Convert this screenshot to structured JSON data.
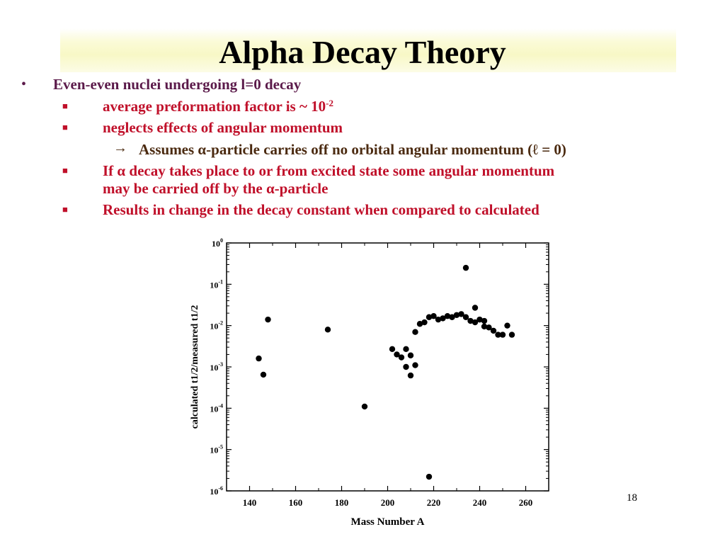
{
  "slide": {
    "title": "Alpha Decay Theory",
    "page_number": "18",
    "bullets": {
      "b1": "Even-even nuclei undergoing l=0 decay",
      "b2_text": "average preformation factor is ~ 10",
      "b2_sup": "-2",
      "b3": "neglects effects of angular momentum",
      "b4": "Assumes α-particle carries off no orbital angular momentum (ℓ = 0)",
      "b5_line1": "If α decay takes place to or from excited state some angular momentum",
      "b5_line2": "may be carried off by the α-particle",
      "b6": "Results in change in the decay constant when compared to calculated"
    }
  },
  "chart_data": {
    "type": "scatter",
    "xlabel": "Mass Number A",
    "ylabel": "calculated t1/2/measured t1/2",
    "xlim": [
      130,
      270
    ],
    "ylim": [
      1e-06,
      1
    ],
    "yscale": "log",
    "xticks": [
      140,
      160,
      180,
      200,
      220,
      240,
      260
    ],
    "xtick_labels": [
      "140",
      "160",
      "180",
      "200",
      "220",
      "240",
      "260"
    ],
    "yticks": [
      1e-06,
      1e-05,
      0.0001,
      0.001,
      0.01,
      0.1,
      1
    ],
    "ytick_labels": [
      {
        "base": "10",
        "exp": "-6"
      },
      {
        "base": "10",
        "exp": "-5"
      },
      {
        "base": "10",
        "exp": "-4"
      },
      {
        "base": "10",
        "exp": "-3"
      },
      {
        "base": "10",
        "exp": "-2"
      },
      {
        "base": "10",
        "exp": "-1"
      },
      {
        "base": "10",
        "exp": "0"
      }
    ],
    "points": [
      [
        144,
        0.0016
      ],
      [
        146,
        0.00065
      ],
      [
        148,
        0.014
      ],
      [
        174,
        0.008
      ],
      [
        190,
        0.00011
      ],
      [
        202,
        0.0027
      ],
      [
        204,
        0.002
      ],
      [
        206,
        0.0017
      ],
      [
        208,
        0.0027
      ],
      [
        208,
        0.001
      ],
      [
        210,
        0.0019
      ],
      [
        210,
        0.00062
      ],
      [
        212,
        0.0011
      ],
      [
        212,
        0.007
      ],
      [
        214,
        0.011
      ],
      [
        216,
        0.012
      ],
      [
        218,
        0.016
      ],
      [
        218,
        2.2e-06
      ],
      [
        220,
        0.017
      ],
      [
        222,
        0.014
      ],
      [
        224,
        0.015
      ],
      [
        226,
        0.017
      ],
      [
        228,
        0.016
      ],
      [
        230,
        0.018
      ],
      [
        232,
        0.019
      ],
      [
        234,
        0.016
      ],
      [
        234,
        0.25
      ],
      [
        236,
        0.013
      ],
      [
        238,
        0.012
      ],
      [
        238,
        0.027
      ],
      [
        240,
        0.014
      ],
      [
        242,
        0.013
      ],
      [
        242,
        0.0095
      ],
      [
        244,
        0.009
      ],
      [
        246,
        0.0075
      ],
      [
        248,
        0.006
      ],
      [
        250,
        0.006
      ],
      [
        252,
        0.01
      ],
      [
        254,
        0.006
      ]
    ]
  }
}
